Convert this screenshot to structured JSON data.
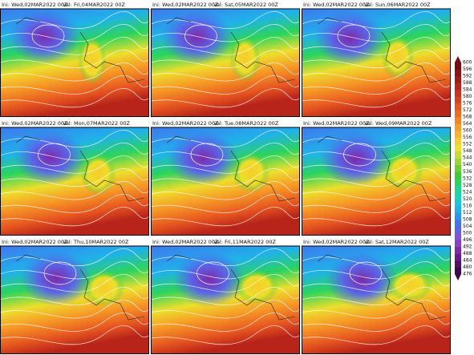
{
  "panels": [
    {
      "init": "Ini: Wed,02MAR2022 00Z",
      "valid": "Val: Fri,04MAR2022 00Z"
    },
    {
      "init": "Ini: Wed,02MAR2022 00Z",
      "valid": "Val: Sat,05MAR2022 00Z"
    },
    {
      "init": "Ini: Wed,02MAR2022 00Z",
      "valid": "Val: Sun,06MAR2022 00Z"
    },
    {
      "init": "Ini: Wed,02MAR2022 00Z",
      "valid": "Val: Mon,07MAR2022 00Z"
    },
    {
      "init": "Ini: Wed,02MAR2022 00Z",
      "valid": "Val: Tue,08MAR2022 00Z"
    },
    {
      "init": "Ini: Wed,02MAR2022 00Z",
      "valid": "Val: Wed,09MAR2022 00Z"
    },
    {
      "init": "Ini: Wed,02MAR2022 00Z",
      "valid": "Val: Thu,10MAR2022 00Z"
    },
    {
      "init": "Ini: Wed,02MAR2022 00Z",
      "valid": "Val: Fri,11MAR2022 00Z"
    },
    {
      "init": "Ini: Wed,02MAR2022 00Z",
      "valid": "Val: Sat,12MAR2022 00Z"
    }
  ],
  "colorbar": {
    "ticks": [
      476,
      480,
      484,
      488,
      492,
      496,
      500,
      504,
      508,
      512,
      516,
      520,
      524,
      528,
      532,
      536,
      540,
      544,
      548,
      552,
      556,
      560,
      564,
      568,
      572,
      576,
      580,
      584,
      588,
      592,
      596,
      600
    ],
    "colors": [
      "#3d0a4f",
      "#55106b",
      "#6c1a8a",
      "#7e2aa8",
      "#8a3fc7",
      "#7a55dd",
      "#5b63e8",
      "#3f78ee",
      "#2d95f0",
      "#1fb2ea",
      "#17c9d8",
      "#18d6b3",
      "#1fd98a",
      "#2bd45c",
      "#3fcc3a",
      "#6bd034",
      "#9cd631",
      "#c8dc2e",
      "#ecdf2c",
      "#f7cc2a",
      "#f8b428",
      "#f79c26",
      "#f58424",
      "#ef6b22",
      "#e65520",
      "#da421e",
      "#cc321c",
      "#b9241a",
      "#a41a18",
      "#8e1216",
      "#780c14"
    ]
  }
}
